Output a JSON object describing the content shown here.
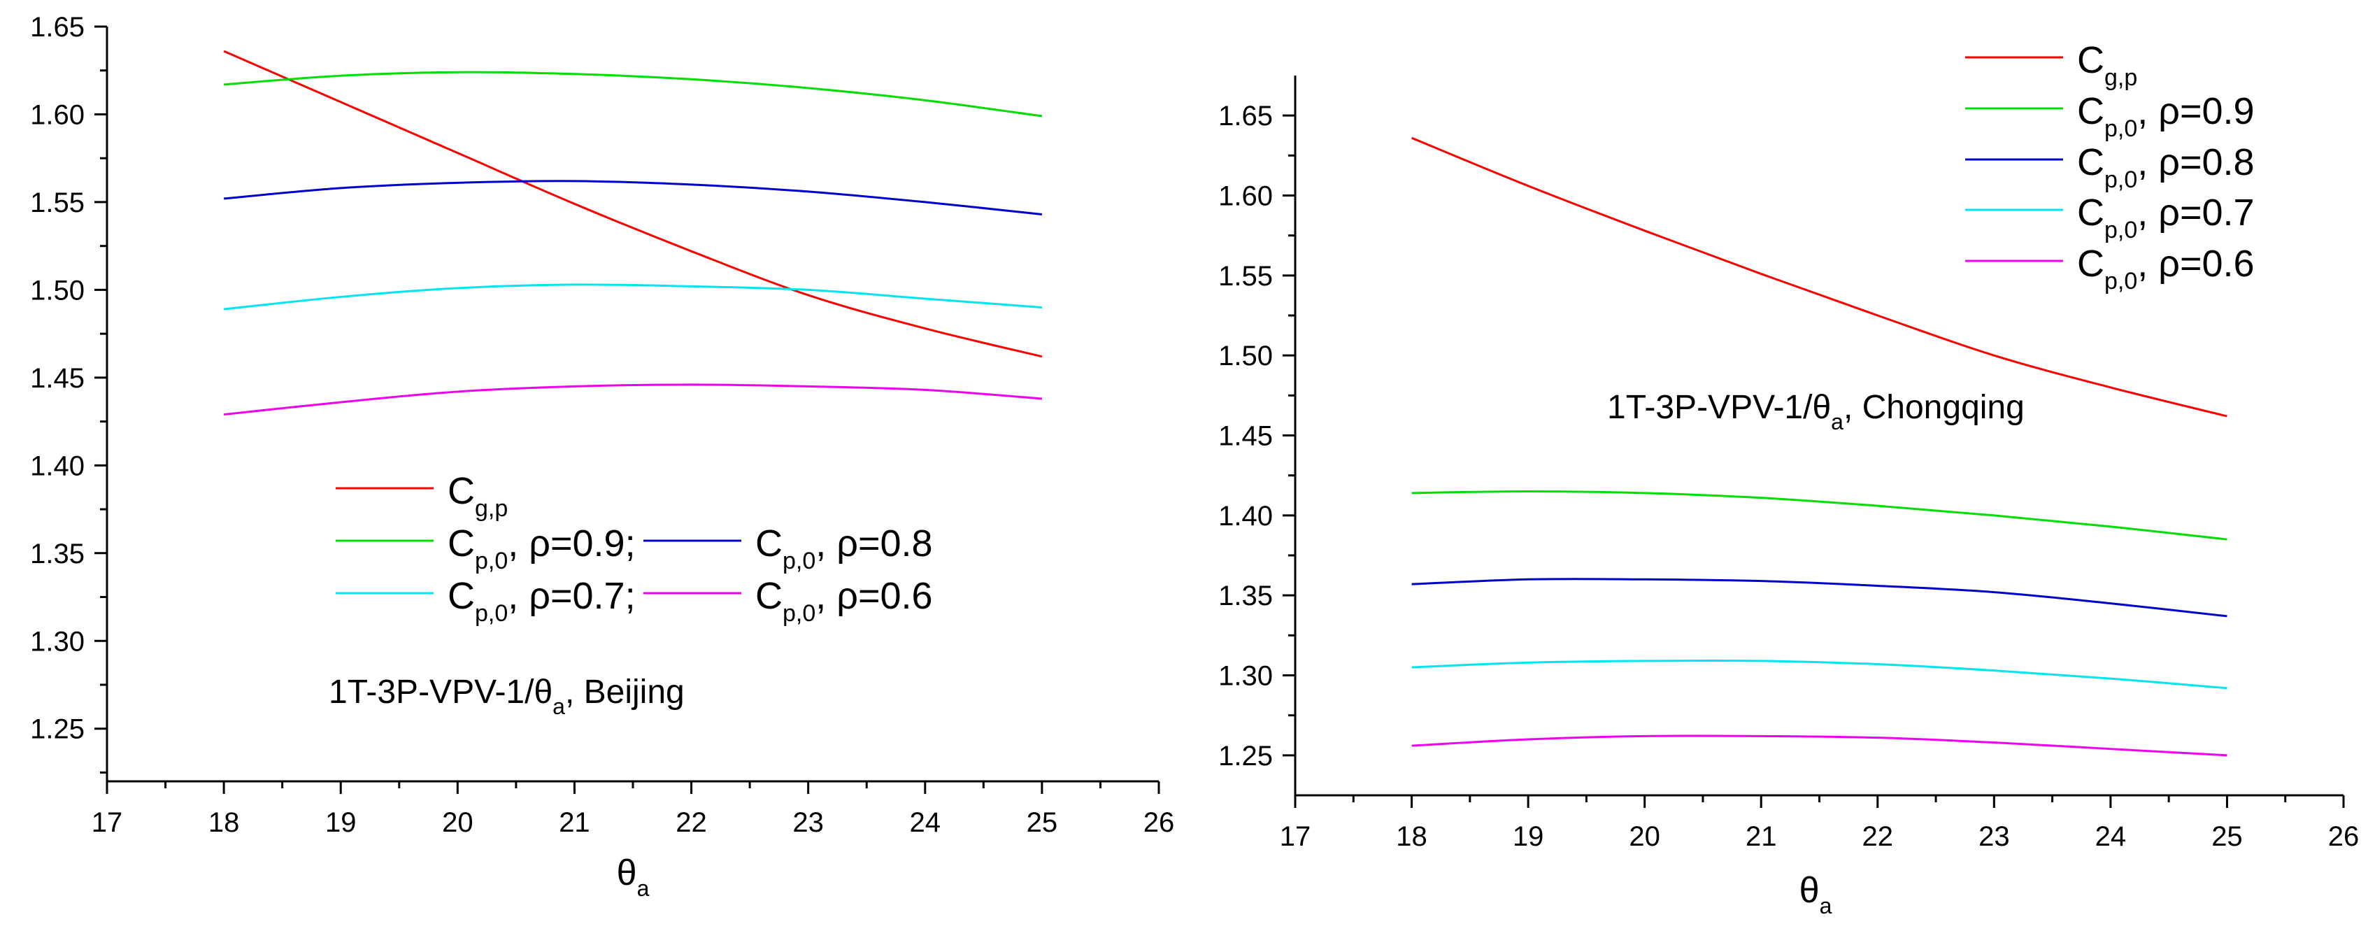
{
  "chart_data": [
    {
      "type": "line",
      "xlabel": {
        "main": "θ",
        "sub": "a"
      },
      "ylabel": "",
      "xlim": [
        17,
        26
      ],
      "ylim": [
        1.22,
        1.65
      ],
      "xticks": [
        "17",
        "18",
        "19",
        "20",
        "21",
        "22",
        "23",
        "24",
        "25",
        "26"
      ],
      "yticks": [
        "1.25",
        "1.30",
        "1.35",
        "1.40",
        "1.45",
        "1.50",
        "1.55",
        "1.60",
        "1.65"
      ],
      "annotation": {
        "pre": "1T-3P-VPV-1/θ",
        "sub": "a",
        "post": ", Beijing"
      },
      "x": [
        18,
        19,
        20,
        21,
        22,
        23,
        24,
        25
      ],
      "series": [
        {
          "name": "Cg,p",
          "label_main": "C",
          "label_sub": "g,p",
          "label_post": "",
          "color": "#ff0000",
          "values": [
            1.636,
            1.607,
            1.578,
            1.549,
            1.522,
            1.497,
            1.478,
            1.462
          ]
        },
        {
          "name": "Cp,0, ρ=0.9",
          "label_main": "C",
          "label_sub": "p,0",
          "label_post": ", ρ=0.9;",
          "color": "#00dd00",
          "values": [
            1.617,
            1.622,
            1.624,
            1.623,
            1.62,
            1.615,
            1.608,
            1.599
          ]
        },
        {
          "name": "Cp,0, ρ=0.8",
          "label_main": "C",
          "label_sub": "p,0",
          "label_post": ", ρ=0.8",
          "color": "#0000cc",
          "values": [
            1.552,
            1.558,
            1.561,
            1.562,
            1.56,
            1.556,
            1.55,
            1.543
          ]
        },
        {
          "name": "Cp,0, ρ=0.7",
          "label_main": "C",
          "label_sub": "p,0",
          "label_post": ", ρ=0.7;",
          "color": "#00e5ee",
          "values": [
            1.489,
            1.496,
            1.501,
            1.503,
            1.502,
            1.5,
            1.495,
            1.49
          ]
        },
        {
          "name": "Cp,0, ρ=0.6",
          "label_main": "C",
          "label_sub": "p,0",
          "label_post": ", ρ=0.6",
          "color": "#ee00ee",
          "values": [
            1.429,
            1.436,
            1.442,
            1.445,
            1.446,
            1.445,
            1.443,
            1.438
          ]
        }
      ]
    },
    {
      "type": "line",
      "xlabel": {
        "main": "θ",
        "sub": "a"
      },
      "ylabel": "",
      "xlim": [
        17,
        26
      ],
      "ylim": [
        1.225,
        1.675
      ],
      "xticks": [
        "17",
        "18",
        "19",
        "20",
        "21",
        "22",
        "23",
        "24",
        "25",
        "26"
      ],
      "yticks": [
        "1.25",
        "1.30",
        "1.35",
        "1.40",
        "1.45",
        "1.50",
        "1.55",
        "1.60",
        "1.65"
      ],
      "annotation": {
        "pre": "1T-3P-VPV-1/θ",
        "sub": "a",
        "post": ", Chongqing"
      },
      "x": [
        18,
        19,
        20,
        21,
        22,
        23,
        24,
        25
      ],
      "series": [
        {
          "name": "Cg,p",
          "label_main": "C",
          "label_sub": "g,p",
          "label_post": "",
          "color": "#ff0000",
          "values": [
            1.636,
            1.606,
            1.578,
            1.551,
            1.525,
            1.5,
            1.48,
            1.462
          ]
        },
        {
          "name": "Cp,0, ρ=0.9",
          "label_main": "C",
          "label_sub": "p,0",
          "label_post": ", ρ=0.9",
          "color": "#00dd00",
          "values": [
            1.414,
            1.415,
            1.414,
            1.411,
            1.406,
            1.4,
            1.393,
            1.385
          ]
        },
        {
          "name": "Cp,0, ρ=0.8",
          "label_main": "C",
          "label_sub": "p,0",
          "label_post": ", ρ=0.8",
          "color": "#0000cc",
          "values": [
            1.357,
            1.36,
            1.36,
            1.359,
            1.356,
            1.352,
            1.345,
            1.337
          ]
        },
        {
          "name": "Cp,0, ρ=0.7",
          "label_main": "C",
          "label_sub": "p,0",
          "label_post": ", ρ=0.7",
          "color": "#00e5ee",
          "values": [
            1.305,
            1.308,
            1.309,
            1.309,
            1.307,
            1.303,
            1.298,
            1.292
          ]
        },
        {
          "name": "Cp,0, ρ=0.6",
          "label_main": "C",
          "label_sub": "p,0",
          "label_post": ", ρ=0.6",
          "color": "#ee00ee",
          "values": [
            1.256,
            1.26,
            1.262,
            1.262,
            1.261,
            1.258,
            1.254,
            1.25
          ]
        }
      ]
    }
  ]
}
